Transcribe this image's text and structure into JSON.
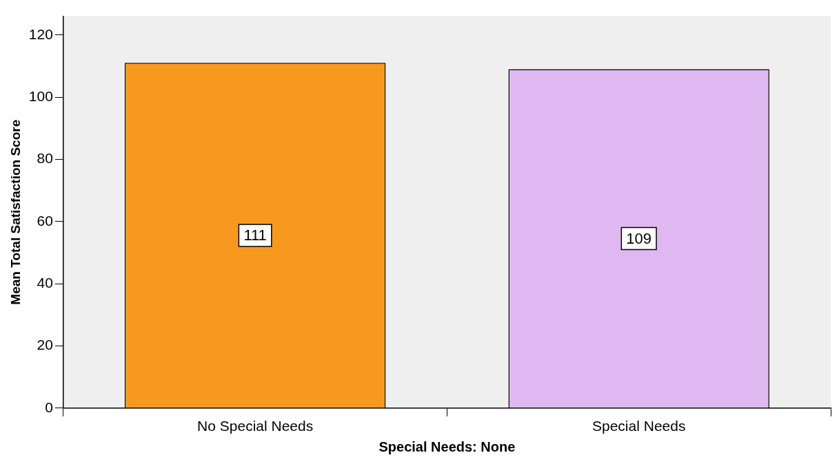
{
  "chart_data": {
    "type": "bar",
    "xlabel": "Special Needs: None",
    "ylabel": "Mean Total Satisfaction Score",
    "categories": [
      "No Special Needs",
      "Special Needs"
    ],
    "values": [
      111,
      109
    ],
    "colors": [
      "#f7991f",
      "#dfb8f2"
    ],
    "ylim": [
      0,
      126
    ],
    "yticks": [
      0,
      20,
      40,
      60,
      80,
      100,
      120
    ],
    "grid": false,
    "legend": false,
    "data_labels": true
  }
}
